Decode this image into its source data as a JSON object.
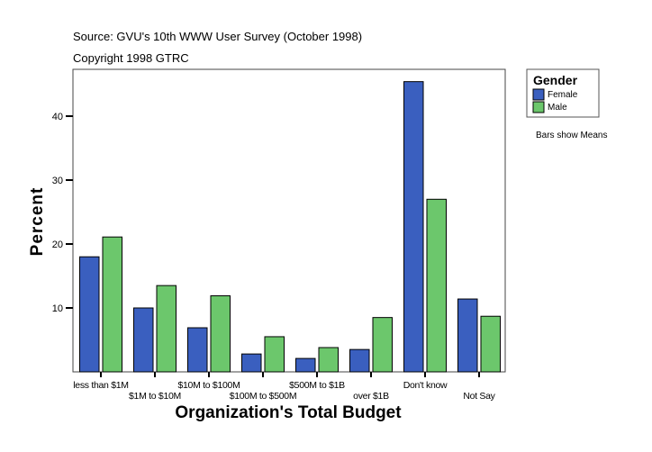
{
  "chart_data": {
    "type": "bar",
    "title": "Source: GVU's 10th WWW User Survey (October 1998)",
    "subtitle": "Copyright 1998 GTRC",
    "xlabel": "Organization's Total Budget",
    "ylabel": "Percent",
    "note": "Bars show Means",
    "ylim": [
      0,
      47
    ],
    "yticks": [
      10,
      20,
      30,
      40
    ],
    "grid": false,
    "legend": {
      "title": "Gender",
      "placement": "right"
    },
    "categories": [
      "less than $1M",
      "$1M to $10M",
      "$10M to $100M",
      "$100M to $500M",
      "$500M to $1B",
      "over $1B",
      "Don't know",
      "Not Say"
    ],
    "series": [
      {
        "name": "Female",
        "color": "#3a5fbf",
        "values": [
          18.0,
          10.0,
          6.9,
          2.8,
          2.1,
          3.5,
          45.4,
          11.4
        ]
      },
      {
        "name": "Male",
        "color": "#6cc76c",
        "values": [
          21.1,
          13.5,
          11.9,
          5.5,
          3.8,
          8.5,
          27.0,
          8.7
        ]
      }
    ]
  }
}
